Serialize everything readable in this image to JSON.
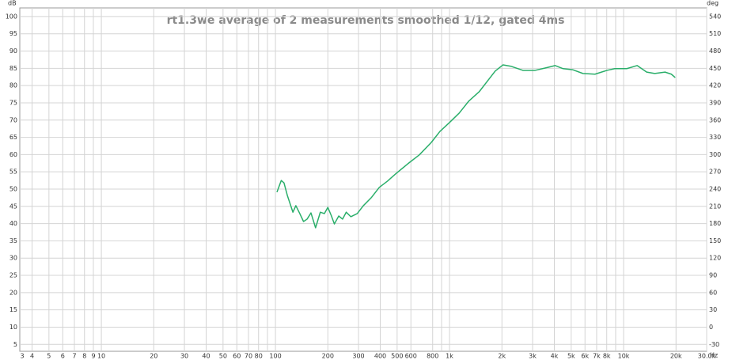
{
  "chart_data": {
    "type": "line",
    "title": "rt1.3we average of 2 measurements smoothed 1/12, gated 4ms",
    "y_label": "dB",
    "y2_label": "deg",
    "x_label": "Hz",
    "xscale": "log",
    "grid": true,
    "color": "#2aae6a",
    "xlim": [
      3.4,
      30000
    ],
    "xticks": [
      3,
      4,
      5,
      6,
      7,
      8,
      9,
      10,
      20,
      30,
      40,
      50,
      60,
      70,
      80,
      100,
      200,
      300,
      400,
      500,
      600,
      {
        "value": 800,
        "label": "800"
      },
      {
        "value": 1000,
        "label": "1k"
      },
      {
        "value": 2000,
        "label": "2k"
      },
      {
        "value": 3000,
        "label": "3k"
      },
      {
        "value": 4000,
        "label": "4k"
      },
      {
        "value": 5000,
        "label": "5k"
      },
      {
        "value": 6000,
        "label": "6k"
      },
      {
        "value": 7000,
        "label": "7k"
      },
      {
        "value": 8000,
        "label": "8k"
      },
      {
        "value": 10000,
        "label": "10k"
      },
      {
        "value": 20000,
        "label": "20k"
      },
      {
        "value": 30000,
        "label": "30.0k"
      }
    ],
    "xminorticks": [
      90,
      900,
      9000
    ],
    "ylim": [
      3,
      102.5
    ],
    "yticks": [
      5,
      10,
      15,
      20,
      25,
      30,
      35,
      40,
      45,
      50,
      55,
      60,
      65,
      70,
      75,
      80,
      85,
      90,
      95,
      100
    ],
    "y2lim": [
      -42,
      555
    ],
    "y2ticks": [
      -30,
      0,
      30,
      60,
      90,
      120,
      150,
      180,
      210,
      240,
      270,
      300,
      330,
      360,
      390,
      420,
      450,
      480,
      510,
      540
    ],
    "x": [
      102,
      108,
      112,
      117,
      126,
      131,
      138,
      145,
      152,
      160,
      170,
      181,
      191,
      200,
      209,
      218,
      231,
      243,
      255,
      271,
      295,
      320,
      355,
      395,
      440,
      490,
      575,
      670,
      785,
      880,
      1000,
      1135,
      1290,
      1480,
      1645,
      1830,
      2030,
      2250,
      2640,
      3100,
      3560,
      4040,
      4490,
      5090,
      5840,
      6850,
      8020,
      8900,
      10430,
      11970,
      13570,
      15090,
      17300,
      18800,
      19800
    ],
    "values": [
      49.1,
      52.5,
      51.8,
      48.2,
      43.3,
      45.2,
      42.9,
      40.6,
      41.3,
      43.1,
      38.8,
      43.3,
      42.9,
      44.7,
      42.4,
      39.9,
      42.2,
      41.3,
      43.3,
      42.0,
      42.9,
      45.2,
      47.5,
      50.5,
      52.3,
      54.4,
      57.3,
      59.9,
      63.5,
      66.7,
      69.3,
      72.0,
      75.5,
      78.2,
      81.2,
      84.2,
      86.0,
      85.6,
      84.4,
      84.4,
      85.1,
      85.8,
      84.9,
      84.6,
      83.5,
      83.3,
      84.4,
      84.9,
      84.9,
      85.8,
      83.9,
      83.5,
      83.9,
      83.3,
      82.3
    ]
  }
}
